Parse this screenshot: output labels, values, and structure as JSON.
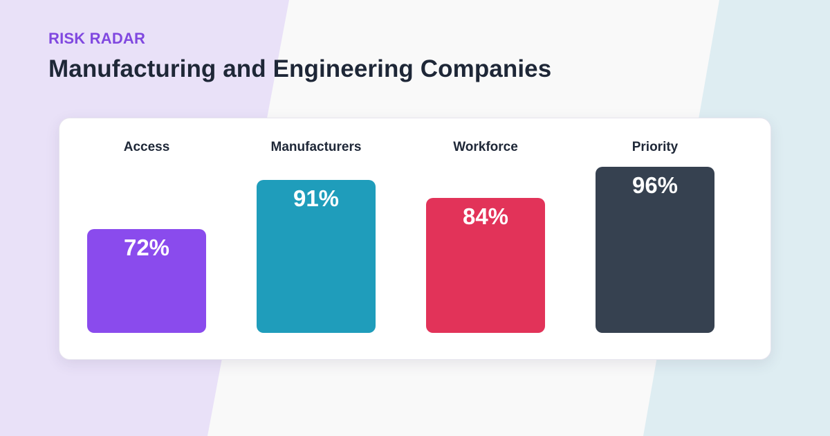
{
  "header": {
    "eyebrow": "RISK RADAR",
    "title": "Manufacturing and Engineering Companies"
  },
  "colors": {
    "background_left": "#e9e1f8",
    "background_center": "#f9f9f9",
    "background_right": "#deedf2",
    "eyebrow": "#8048e0",
    "title": "#1e2737"
  },
  "chart_data": {
    "type": "bar",
    "title": "",
    "xlabel": "",
    "ylabel": "",
    "ylim": [
      0,
      100
    ],
    "unit": "%",
    "grid": false,
    "categories": [
      "Access",
      "Manufacturers",
      "Workforce",
      "Priority"
    ],
    "values": [
      72,
      91,
      84,
      96
    ],
    "value_labels": [
      "72%",
      "91%",
      "84%",
      "96%"
    ],
    "bar_colors": [
      "#8a4bed",
      "#1f9dbb",
      "#e23359",
      "#364150"
    ]
  }
}
